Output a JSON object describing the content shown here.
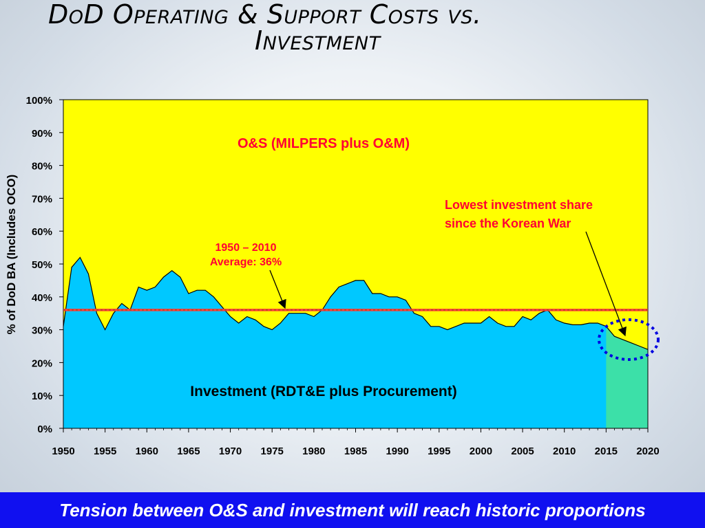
{
  "slide": {
    "title_line1": "DoD Operating & Support Costs vs.",
    "title_line2": "Investment",
    "footer_text": "Tension between O&S and investment will reach historic proportions"
  },
  "colors": {
    "os_area": "#ffff00",
    "investment_area": "#00c8ff",
    "projection_area": "#3ce0a8",
    "average_line": "#ff3b3b",
    "label_red": "#ff0033",
    "highlight_ellipse": "#0000e0",
    "footer_bg": "#1010f0"
  },
  "chart_data": {
    "type": "area",
    "ylabel": "% of DoD BA (Includes OCO)",
    "xlabel": "",
    "ylim": [
      0,
      100
    ],
    "xlim": [
      1950,
      2020
    ],
    "yticks": [
      "0%",
      "10%",
      "20%",
      "30%",
      "40%",
      "50%",
      "60%",
      "70%",
      "80%",
      "90%",
      "100%"
    ],
    "yticks_values": [
      0,
      10,
      20,
      30,
      40,
      50,
      60,
      70,
      80,
      90,
      100
    ],
    "xticks": [
      "1950",
      "1955",
      "1960",
      "1965",
      "1970",
      "1975",
      "1980",
      "1985",
      "1990",
      "1995",
      "2000",
      "2005",
      "2010",
      "2015",
      "2020"
    ],
    "xticks_values": [
      1950,
      1955,
      1960,
      1965,
      1970,
      1975,
      1980,
      1985,
      1990,
      1995,
      2000,
      2005,
      2010,
      2015,
      2020
    ],
    "series": [
      {
        "name": "Investment (RDT&E plus Procurement)",
        "x": [
          1950,
          1951,
          1952,
          1953,
          1954,
          1955,
          1956,
          1957,
          1958,
          1959,
          1960,
          1961,
          1962,
          1963,
          1964,
          1965,
          1966,
          1967,
          1968,
          1969,
          1970,
          1971,
          1972,
          1973,
          1974,
          1975,
          1976,
          1977,
          1978,
          1979,
          1980,
          1981,
          1982,
          1983,
          1984,
          1985,
          1986,
          1987,
          1988,
          1989,
          1990,
          1991,
          1992,
          1993,
          1994,
          1995,
          1996,
          1997,
          1998,
          1999,
          2000,
          2001,
          2002,
          2003,
          2004,
          2005,
          2006,
          2007,
          2008,
          2009,
          2010,
          2011,
          2012,
          2013,
          2014,
          2015,
          2016,
          2017,
          2018,
          2019,
          2020
        ],
        "y": [
          31,
          49,
          52,
          47,
          35,
          30,
          35,
          38,
          36,
          43,
          42,
          43,
          46,
          48,
          46,
          41,
          42,
          42,
          40,
          37,
          34,
          32,
          34,
          33,
          31,
          30,
          32,
          35,
          35,
          35,
          34,
          36,
          40,
          43,
          44,
          45,
          45,
          41,
          41,
          40,
          40,
          39,
          35,
          34,
          31,
          31,
          30,
          31,
          32,
          32,
          32,
          34,
          32,
          31,
          31,
          34,
          33,
          35,
          36,
          33,
          32,
          31.5,
          31.5,
          32,
          32,
          31,
          28,
          27,
          26,
          25,
          24
        ]
      },
      {
        "name": "O&S (MILPERS plus O&M)",
        "note": "remainder to 100%"
      }
    ],
    "reference_lines": [
      {
        "label": "1950 – 2010 Average:  36%",
        "value": 36
      }
    ],
    "projection_start": 2015,
    "annotations": {
      "os_label": "O&S (MILPERS plus O&M)",
      "investment_label": "Investment (RDT&E plus Procurement)",
      "average_line1": "1950 – 2010",
      "average_line2": "Average:  36%",
      "lowest_line1": "Lowest investment share",
      "lowest_line2": "since the Korean War"
    }
  }
}
